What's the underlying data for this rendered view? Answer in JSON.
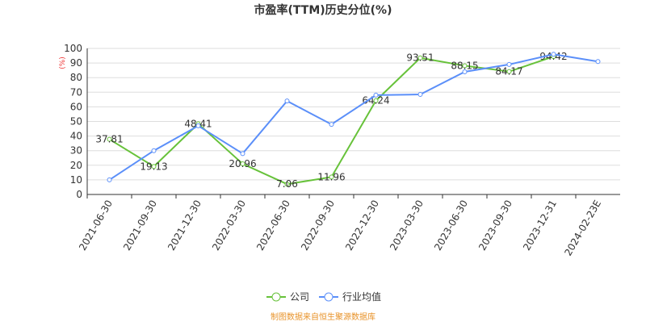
{
  "chart_data": {
    "type": "line",
    "title": "市盈率(TTM)历史分位(%)",
    "y_label": "(%)",
    "categories": [
      "2021-06-30",
      "2021-09-30",
      "2021-12-30",
      "2022-03-30",
      "2022-06-30",
      "2022-09-30",
      "2022-12-30",
      "2023-03-30",
      "2023-06-30",
      "2023-09-30",
      "2023-12-31",
      "2024-02-23E"
    ],
    "series": [
      {
        "name": "公司",
        "color": "#67c23a",
        "values": [
          37.81,
          19.13,
          48.41,
          20.96,
          7.06,
          11.96,
          64.24,
          93.51,
          88.15,
          84.17,
          94.42,
          null
        ],
        "show_labels": true
      },
      {
        "name": "行业均值",
        "color": "#5b8ff9",
        "values": [
          10,
          30,
          47,
          28,
          64,
          48,
          68,
          68.5,
          84,
          89,
          96,
          91
        ],
        "show_labels": false
      }
    ],
    "ylim": [
      0,
      100
    ],
    "yticks": [
      0,
      10,
      20,
      30,
      40,
      50,
      60,
      70,
      80,
      90,
      100
    ],
    "grid": true,
    "footer": "制图数据来自恒生聚源数据库"
  }
}
